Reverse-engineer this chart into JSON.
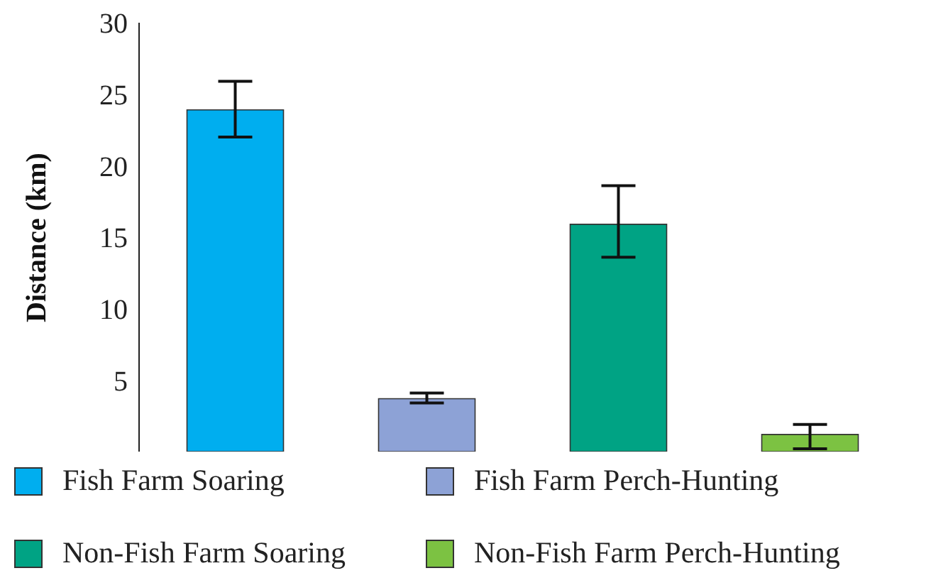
{
  "chart_data": {
    "type": "bar",
    "ylabel": "Distance (km)",
    "categories": [
      null,
      null,
      null,
      null
    ],
    "stacked": true,
    "series": [
      {
        "name": "Fish Farm Soaring",
        "color": "#00aeef",
        "values": [
          23.9,
          null,
          null,
          null
        ],
        "errors": [
          [
            22.0,
            25.9
          ],
          null,
          null,
          null
        ]
      },
      {
        "name": "Fish Farm Perch-Hunting",
        "color": "#8da2d6",
        "values": [
          null,
          3.7,
          null,
          null
        ],
        "errors": [
          null,
          [
            3.4,
            4.1
          ],
          null,
          null
        ]
      },
      {
        "name": "Non-Fish Farm Soaring",
        "color": "#00a384",
        "values": [
          null,
          null,
          15.9,
          null
        ],
        "errors": [
          null,
          null,
          [
            13.6,
            18.6
          ],
          null
        ]
      },
      {
        "name": "Non-Fish Farm Perch-Hunting",
        "color": "#7cc242",
        "values": [
          null,
          null,
          null,
          1.2
        ],
        "errors": [
          null,
          null,
          null,
          [
            0.2,
            1.9
          ]
        ]
      }
    ],
    "ylim": [
      0,
      30
    ],
    "yticks": [
      5,
      10,
      15,
      20,
      25,
      30
    ],
    "legend": "bottom",
    "grid": false
  }
}
